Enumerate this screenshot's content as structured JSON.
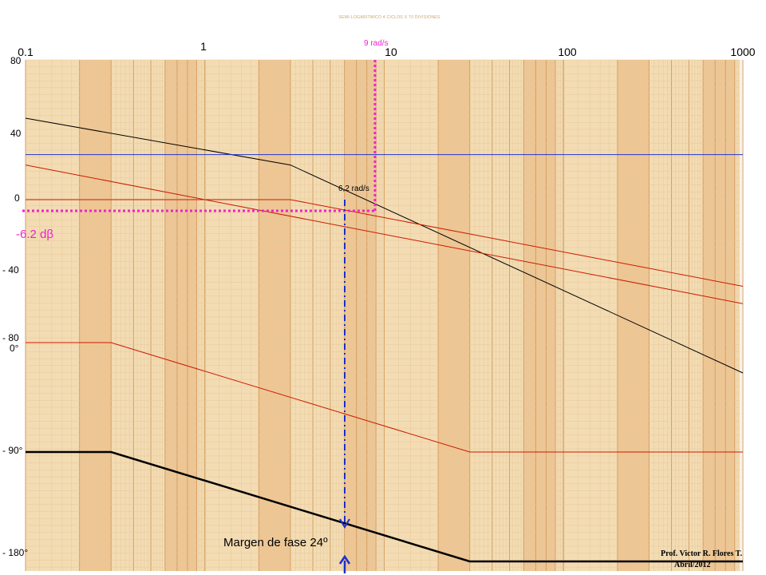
{
  "chart_data": {
    "type": "line",
    "sheet_title": "SEMI-LOGARITMICO 4 CICLOS X 70 DIVISIONES",
    "x_scale": "log",
    "x_ticks": [
      "0.1",
      "1",
      "10",
      "100",
      "1000"
    ],
    "magnitude_ticks": [
      "80",
      "40",
      "0",
      "- 40",
      "- 80"
    ],
    "phase_ticks": [
      "0°",
      "- 90°",
      "- 180°"
    ],
    "series": [
      {
        "values": [
          [
            0.1,
            47
          ],
          [
            3,
            20
          ],
          [
            1000,
            -100
          ]
        ]
      },
      {
        "values": [
          [
            0.1,
            0
          ],
          [
            3,
            0
          ],
          [
            1000,
            -50
          ]
        ]
      },
      {
        "values": [
          [
            0.1,
            20
          ],
          [
            1000,
            -60
          ]
        ]
      },
      {
        "values": [
          [
            0.1,
            26
          ],
          [
            1000,
            26
          ]
        ]
      },
      {
        "values": [
          [
            0.1,
            0
          ],
          [
            0.3,
            0
          ],
          [
            30,
            -90
          ],
          [
            1000,
            -90
          ]
        ]
      },
      {
        "values": [
          [
            0.1,
            -90
          ],
          [
            0.3,
            -90
          ],
          [
            30,
            -180
          ],
          [
            1000,
            -180
          ]
        ]
      }
    ],
    "annotations": {
      "w_9": "9 rad/s",
      "w_62": "6,2 rad/s",
      "gain_margin": "-6.2 dβ",
      "phase_margin": "Margen de fase  24º"
    },
    "credit": [
      "Prof. Victor R. Flores T.",
      "Abril/2012"
    ],
    "colors": {
      "paper": "#f3dcb3",
      "grid": "#e7c79a",
      "band": "#eab57a",
      "black": "#000000",
      "red": "#cc1a00",
      "blue": "#1f35cc",
      "magenta": "#ee22cc",
      "navy": "#1a2fcc"
    }
  }
}
